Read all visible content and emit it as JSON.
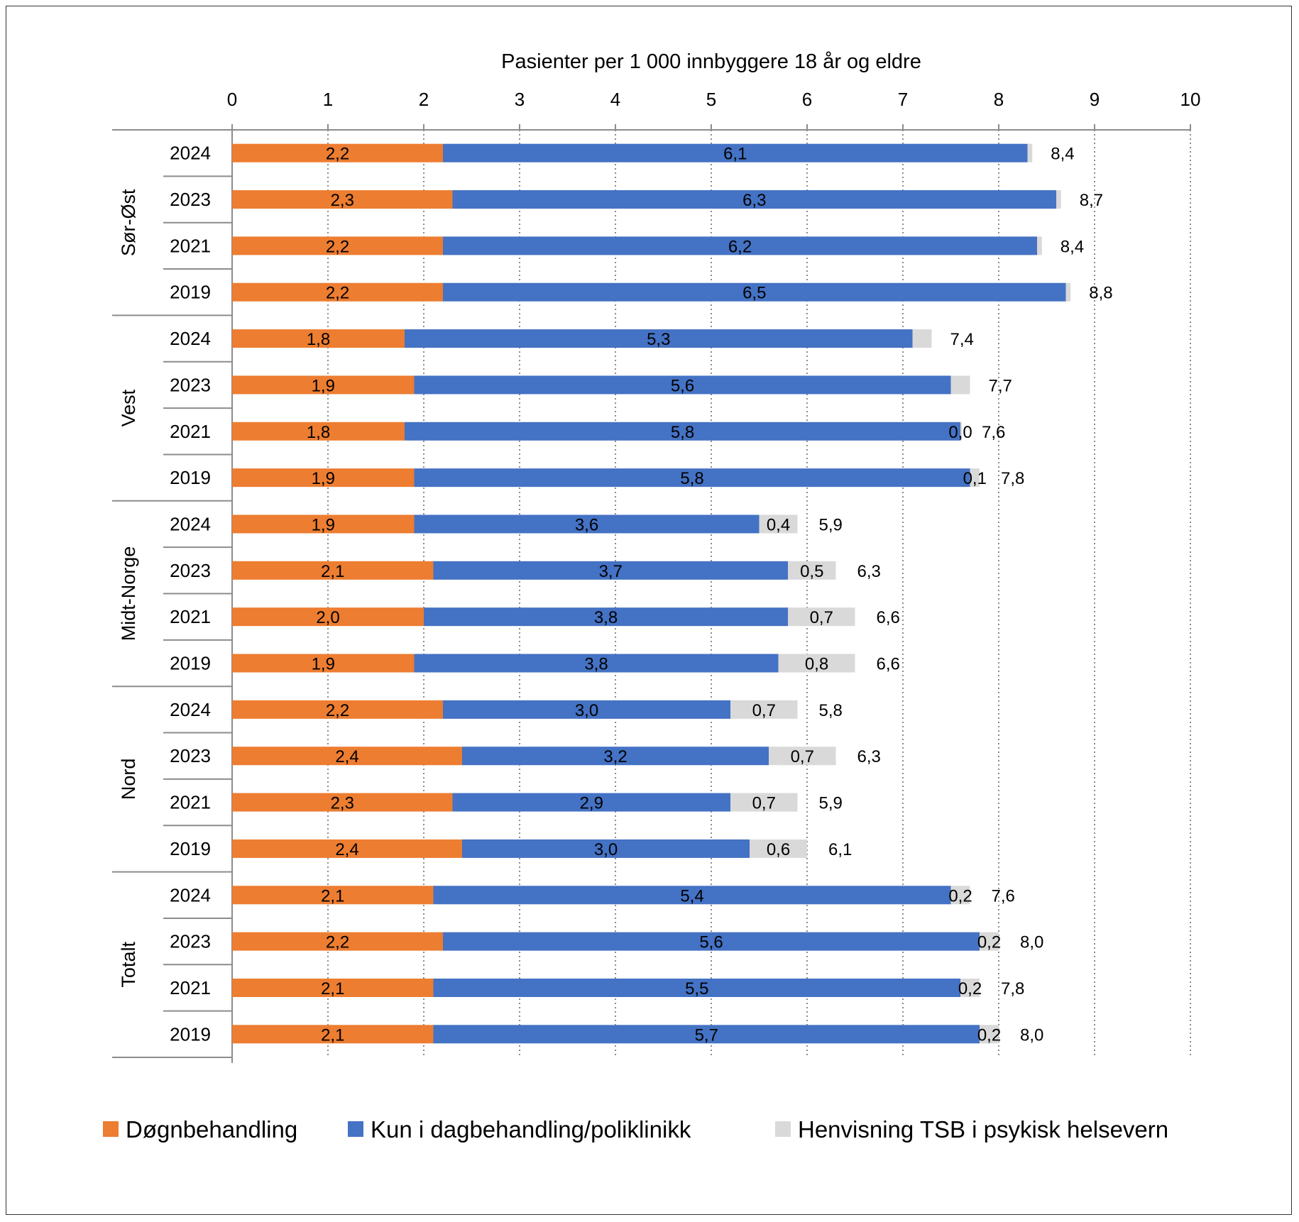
{
  "chart_data": {
    "type": "bar",
    "orientation": "horizontal",
    "stacked": true,
    "title": "Pasienter per 1 000 innbyggere 18 år og eldre",
    "xlim": [
      0,
      10
    ],
    "xticks": [
      "0",
      "1",
      "2",
      "3",
      "4",
      "5",
      "6",
      "7",
      "8",
      "9",
      "10"
    ],
    "grid": "vertical dotted",
    "legend_position": "bottom",
    "colors": {
      "Døgnbehandling": "#ED7D31",
      "Kun i dagbehandling/poliklinikk": "#4472C4",
      "Henvisning TSB i psykisk helsevern": "#D9D9D9"
    },
    "series_names": [
      "Døgnbehandling",
      "Kun i dagbehandling/poliklinikk",
      "Henvisning TSB i psykisk helsevern"
    ],
    "groups": [
      {
        "name": "Sør-Øst",
        "rows": [
          {
            "year": "2024",
            "values": [
              2.2,
              6.1,
              0.05
            ],
            "labels": [
              "2,2",
              "6,1",
              ""
            ],
            "total": "8,4"
          },
          {
            "year": "2023",
            "values": [
              2.3,
              6.3,
              0.05
            ],
            "labels": [
              "2,3",
              "6,3",
              ""
            ],
            "total": "8,7"
          },
          {
            "year": "2021",
            "values": [
              2.2,
              6.2,
              0.05
            ],
            "labels": [
              "2,2",
              "6,2",
              ""
            ],
            "total": "8,4"
          },
          {
            "year": "2019",
            "values": [
              2.2,
              6.5,
              0.05
            ],
            "labels": [
              "2,2",
              "6,5",
              ""
            ],
            "total": "8,8"
          }
        ]
      },
      {
        "name": "Vest",
        "rows": [
          {
            "year": "2024",
            "values": [
              1.8,
              5.3,
              0.2
            ],
            "labels": [
              "1,8",
              "5,3",
              ""
            ],
            "total": "7,4"
          },
          {
            "year": "2023",
            "values": [
              1.9,
              5.6,
              0.2
            ],
            "labels": [
              "1,9",
              "5,6",
              ""
            ],
            "total": "7,7"
          },
          {
            "year": "2021",
            "values": [
              1.8,
              5.8,
              0.0
            ],
            "labels": [
              "1,8",
              "5,8",
              "0,0"
            ],
            "total": "7,6"
          },
          {
            "year": "2019",
            "values": [
              1.9,
              5.8,
              0.1
            ],
            "labels": [
              "1,9",
              "5,8",
              "0,1"
            ],
            "total": "7,8"
          }
        ]
      },
      {
        "name": "Midt-Norge",
        "rows": [
          {
            "year": "2024",
            "values": [
              1.9,
              3.6,
              0.4
            ],
            "labels": [
              "1,9",
              "3,6",
              "0,4"
            ],
            "total": "5,9"
          },
          {
            "year": "2023",
            "values": [
              2.1,
              3.7,
              0.5
            ],
            "labels": [
              "2,1",
              "3,7",
              "0,5"
            ],
            "total": "6,3"
          },
          {
            "year": "2021",
            "values": [
              2.0,
              3.8,
              0.7
            ],
            "labels": [
              "2,0",
              "3,8",
              "0,7"
            ],
            "total": "6,6"
          },
          {
            "year": "2019",
            "values": [
              1.9,
              3.8,
              0.8
            ],
            "labels": [
              "1,9",
              "3,8",
              "0,8"
            ],
            "total": "6,6"
          }
        ]
      },
      {
        "name": "Nord",
        "rows": [
          {
            "year": "2024",
            "values": [
              2.2,
              3.0,
              0.7
            ],
            "labels": [
              "2,2",
              "3,0",
              "0,7"
            ],
            "total": "5,8"
          },
          {
            "year": "2023",
            "values": [
              2.4,
              3.2,
              0.7
            ],
            "labels": [
              "2,4",
              "3,2",
              "0,7"
            ],
            "total": "6,3"
          },
          {
            "year": "2021",
            "values": [
              2.3,
              2.9,
              0.7
            ],
            "labels": [
              "2,3",
              "2,9",
              "0,7"
            ],
            "total": "5,9"
          },
          {
            "year": "2019",
            "values": [
              2.4,
              3.0,
              0.6
            ],
            "labels": [
              "2,4",
              "3,0",
              "0,6"
            ],
            "total": "6,1"
          }
        ]
      },
      {
        "name": "Totalt",
        "rows": [
          {
            "year": "2024",
            "values": [
              2.1,
              5.4,
              0.2
            ],
            "labels": [
              "2,1",
              "5,4",
              "0,2"
            ],
            "total": "7,6"
          },
          {
            "year": "2023",
            "values": [
              2.2,
              5.6,
              0.2
            ],
            "labels": [
              "2,2",
              "5,6",
              "0,2"
            ],
            "total": "8,0"
          },
          {
            "year": "2021",
            "values": [
              2.1,
              5.5,
              0.2
            ],
            "labels": [
              "2,1",
              "5,5",
              "0,2"
            ],
            "total": "7,8"
          },
          {
            "year": "2019",
            "values": [
              2.1,
              5.7,
              0.2
            ],
            "labels": [
              "2,1",
              "5,7",
              "0,2"
            ],
            "total": "8,0"
          }
        ]
      }
    ]
  }
}
